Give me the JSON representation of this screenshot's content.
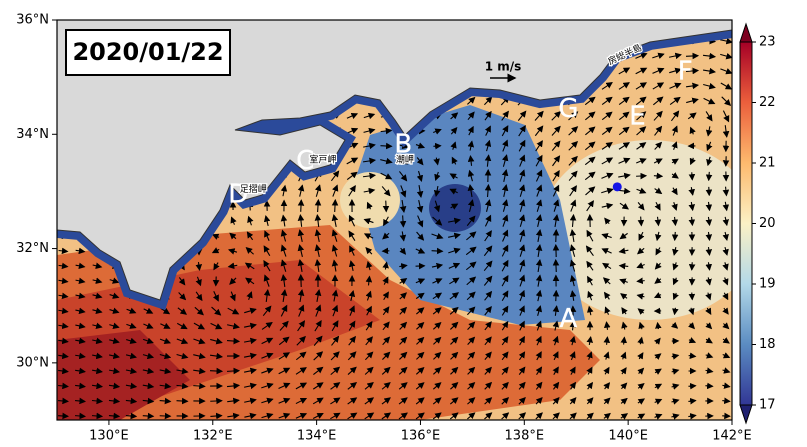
{
  "map": {
    "title": "2020/01/22",
    "xlim": [
      129,
      142
    ],
    "ylim": [
      29,
      36
    ],
    "xticks": [
      {
        "value": 130,
        "label": "130°E"
      },
      {
        "value": 132,
        "label": "132°E"
      },
      {
        "value": 134,
        "label": "134°E"
      },
      {
        "value": 136,
        "label": "136°E"
      },
      {
        "value": 138,
        "label": "138°E"
      },
      {
        "value": 140,
        "label": "140°E"
      },
      {
        "value": 142,
        "label": "142°E"
      }
    ],
    "yticks": [
      {
        "value": 30,
        "label": "30°N"
      },
      {
        "value": 32,
        "label": "32°N"
      },
      {
        "value": 34,
        "label": "34°N"
      },
      {
        "value": 36,
        "label": "36°N"
      }
    ],
    "colorbar": {
      "range": [
        17,
        23
      ],
      "ticks": [
        17,
        18,
        19,
        20,
        21,
        22,
        23
      ],
      "colors": [
        "#313695",
        "#5b8cc2",
        "#b3d9e8",
        "#fbf1c5",
        "#fdba6e",
        "#ec5f3c",
        "#a50026"
      ]
    },
    "labels": [
      {
        "text": "A",
        "lon": 138.85,
        "lat": 30.76
      },
      {
        "text": "B",
        "lon": 135.67,
        "lat": 33.81
      },
      {
        "text": "C",
        "lon": 133.78,
        "lat": 33.52
      },
      {
        "text": "D",
        "lon": 132.49,
        "lat": 32.94
      },
      {
        "text": "E",
        "lon": 140.18,
        "lat": 34.3
      },
      {
        "text": "F",
        "lon": 141.1,
        "lat": 35.09
      },
      {
        "text": "G",
        "lon": 138.85,
        "lat": 34.43
      }
    ],
    "place_names": [
      {
        "text": "室戸岬",
        "lon": 134.12,
        "lat": 33.55
      },
      {
        "text": "潮岬",
        "lon": 135.7,
        "lat": 33.55
      },
      {
        "text": "足摺岬",
        "lon": 132.78,
        "lat": 33.03
      },
      {
        "text": "房総半島",
        "lon": 139.94,
        "lat": 35.39
      }
    ],
    "scale": "1 m/s",
    "marker": {
      "lon": 139.79,
      "lat": 33.08,
      "color": "#1414e6"
    }
  }
}
